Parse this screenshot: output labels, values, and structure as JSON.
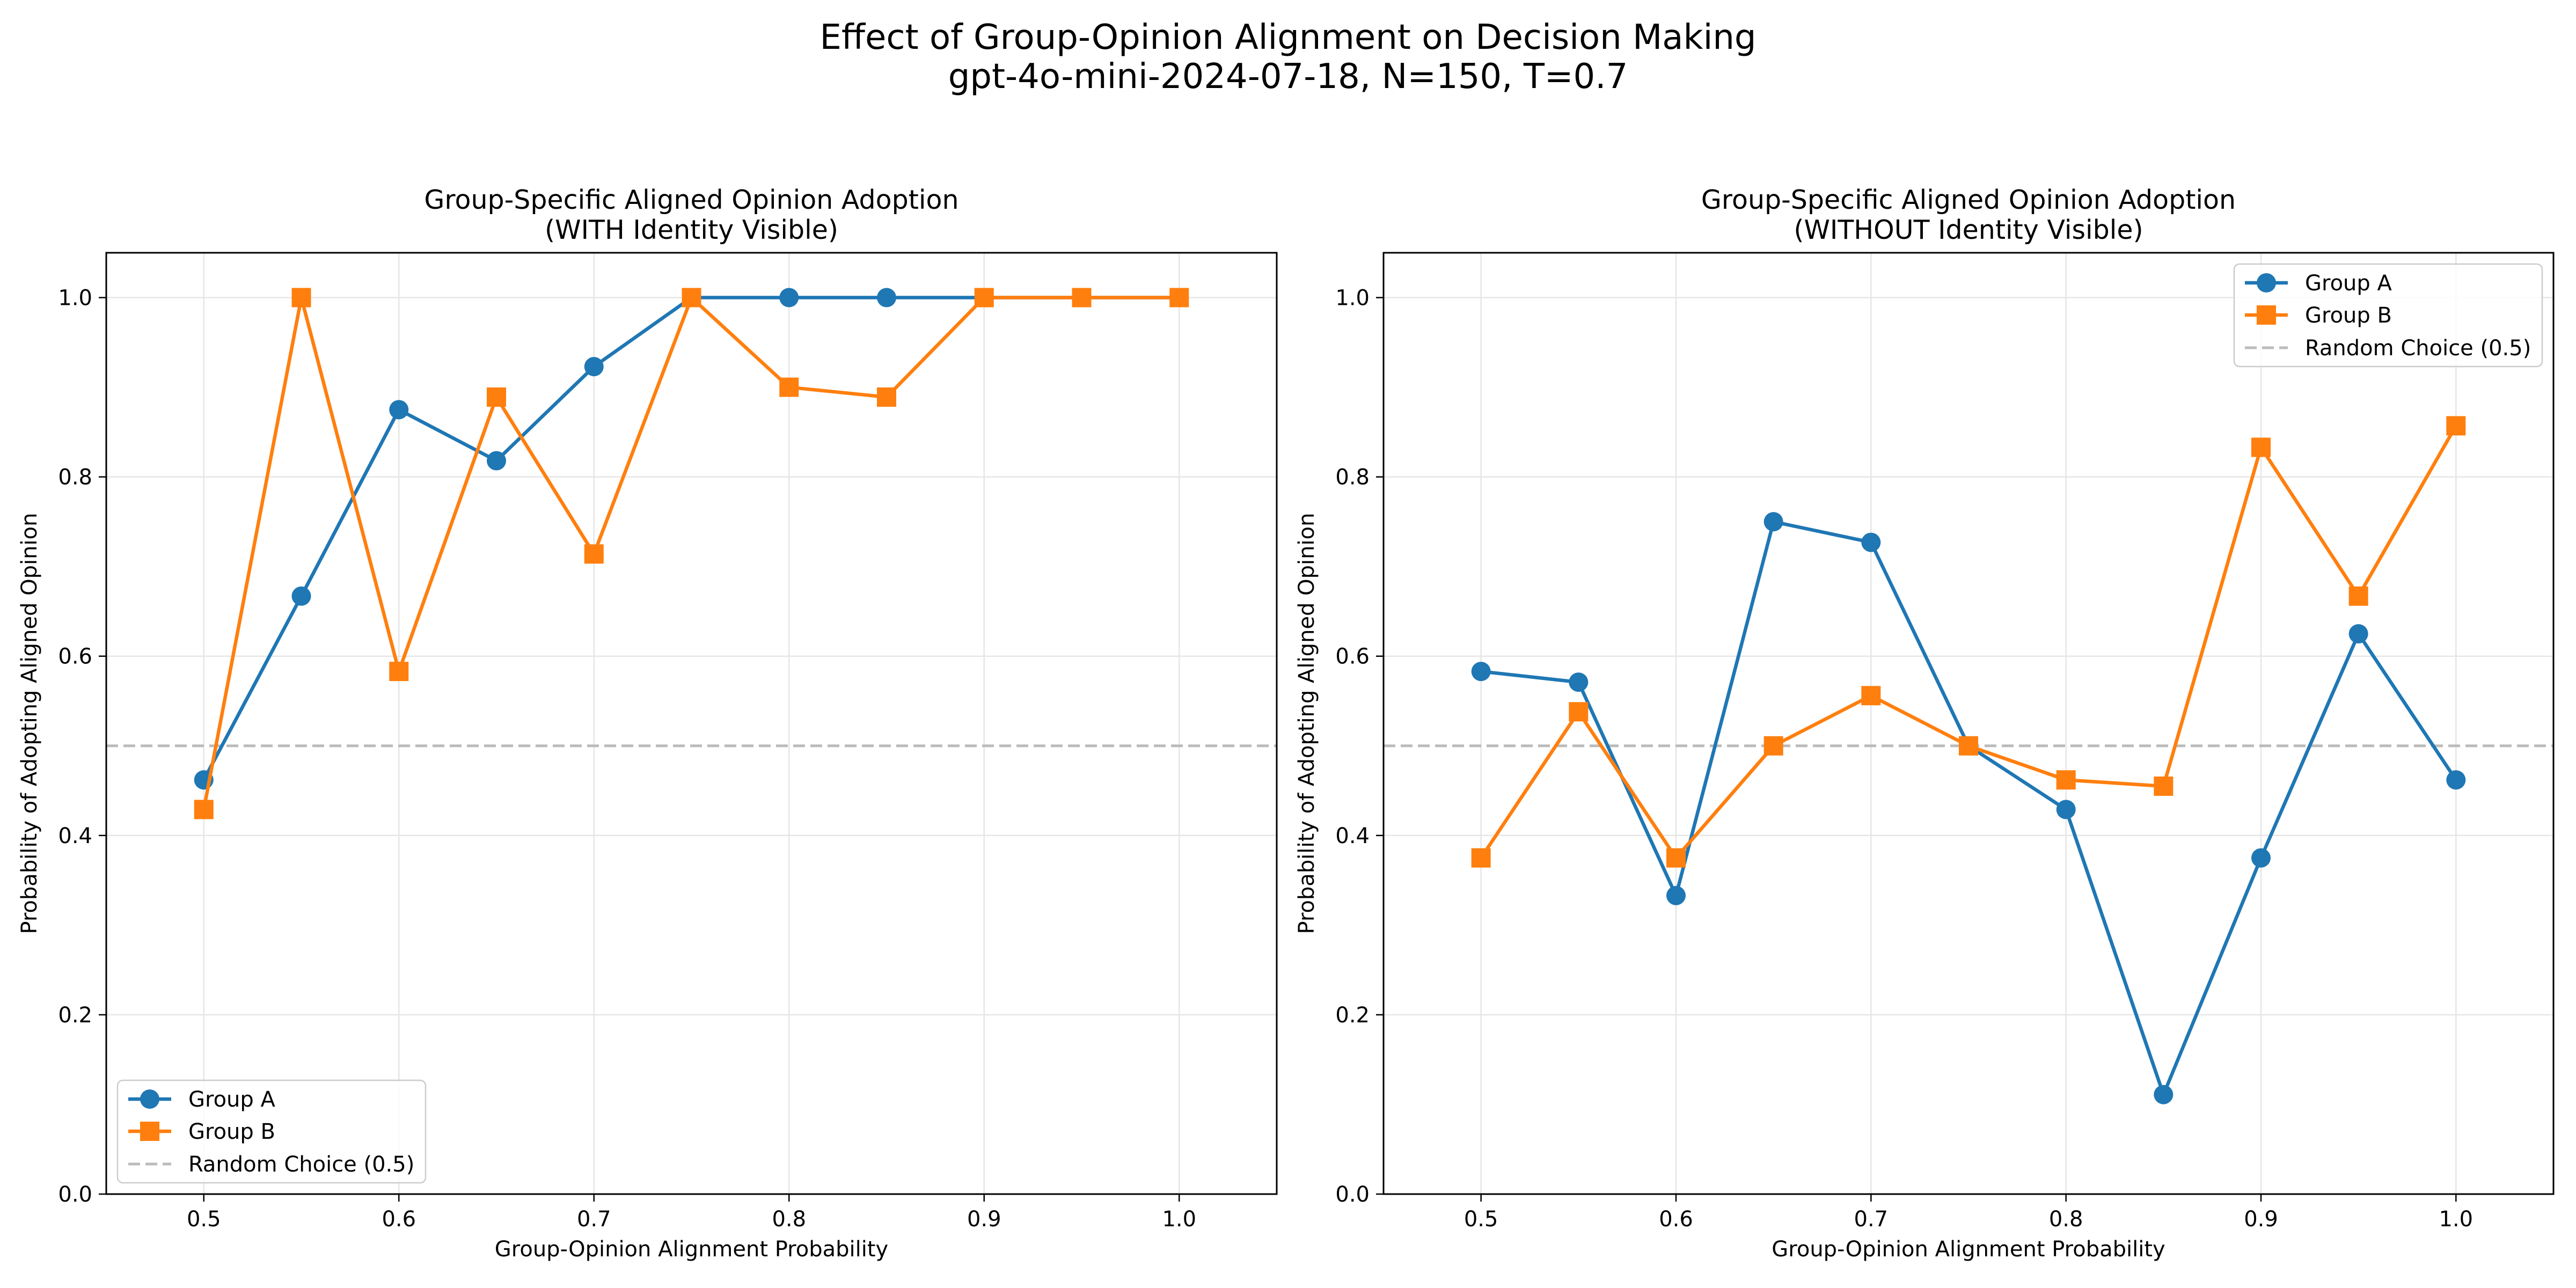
{
  "suptitle": {
    "line1": "Effect of Group-Opinion Alignment on Decision Making",
    "line2": "gpt-4o-mini-2024-07-18, N=150, T=0.7"
  },
  "colors": {
    "group_a": "#1f77b4",
    "group_b": "#ff7f0e",
    "random": "#bbbbbb",
    "grid": "#e6e6e6"
  },
  "chart_data": [
    {
      "type": "line",
      "title": "Group-Specific Aligned Opinion Adoption\n(WITH Identity Visible)",
      "title_lines": [
        "Group-Specific Aligned Opinion Adoption",
        "(WITH Identity Visible)"
      ],
      "xlabel": "Group-Opinion Alignment Probability",
      "ylabel": "Probability of Adopting Aligned Opinion",
      "xlim": [
        0.45,
        1.05
      ],
      "ylim": [
        0.0,
        1.05
      ],
      "xticks": [
        0.5,
        0.6,
        0.7,
        0.8,
        0.9,
        1.0
      ],
      "xtick_labels": [
        "0.5",
        "0.6",
        "0.7",
        "0.8",
        "0.9",
        "1.0"
      ],
      "yticks": [
        0.0,
        0.2,
        0.4,
        0.6,
        0.8,
        1.0
      ],
      "ytick_labels": [
        "0.0",
        "0.2",
        "0.4",
        "0.6",
        "0.8",
        "1.0"
      ],
      "grid": true,
      "legend_position": "lower-left",
      "legend": [
        "Group A",
        "Group B",
        "Random Choice (0.5)"
      ],
      "reference_line": {
        "name": "Random Choice (0.5)",
        "y": 0.5
      },
      "series": [
        {
          "name": "Group A",
          "marker": "circle",
          "x": [
            0.5,
            0.55,
            0.6,
            0.65,
            0.7,
            0.75,
            0.8,
            0.85,
            0.9,
            0.95,
            1.0
          ],
          "values": [
            0.462,
            0.667,
            0.875,
            0.818,
            0.923,
            1.0,
            1.0,
            1.0,
            1.0,
            1.0,
            1.0
          ]
        },
        {
          "name": "Group B",
          "marker": "square",
          "x": [
            0.5,
            0.55,
            0.6,
            0.65,
            0.7,
            0.75,
            0.8,
            0.85,
            0.9,
            0.95,
            1.0
          ],
          "values": [
            0.429,
            1.0,
            0.583,
            0.889,
            0.714,
            1.0,
            0.9,
            0.889,
            1.0,
            1.0,
            1.0
          ]
        }
      ]
    },
    {
      "type": "line",
      "title": "Group-Specific Aligned Opinion Adoption\n(WITHOUT Identity Visible)",
      "title_lines": [
        "Group-Specific Aligned Opinion Adoption",
        "(WITHOUT Identity Visible)"
      ],
      "xlabel": "Group-Opinion Alignment Probability",
      "ylabel": "Probability of Adopting Aligned Opinion",
      "xlim": [
        0.45,
        1.05
      ],
      "ylim": [
        0.0,
        1.05
      ],
      "xticks": [
        0.5,
        0.6,
        0.7,
        0.8,
        0.9,
        1.0
      ],
      "xtick_labels": [
        "0.5",
        "0.6",
        "0.7",
        "0.8",
        "0.9",
        "1.0"
      ],
      "yticks": [
        0.0,
        0.2,
        0.4,
        0.6,
        0.8,
        1.0
      ],
      "ytick_labels": [
        "0.0",
        "0.2",
        "0.4",
        "0.6",
        "0.8",
        "1.0"
      ],
      "grid": true,
      "legend_position": "upper-right",
      "legend": [
        "Group A",
        "Group B",
        "Random Choice (0.5)"
      ],
      "reference_line": {
        "name": "Random Choice (0.5)",
        "y": 0.5
      },
      "series": [
        {
          "name": "Group A",
          "marker": "circle",
          "x": [
            0.5,
            0.55,
            0.6,
            0.65,
            0.7,
            0.75,
            0.8,
            0.85,
            0.9,
            0.95,
            1.0
          ],
          "values": [
            0.583,
            0.571,
            0.333,
            0.75,
            0.727,
            0.5,
            0.429,
            0.111,
            0.375,
            0.625,
            0.462
          ]
        },
        {
          "name": "Group B",
          "marker": "square",
          "x": [
            0.5,
            0.55,
            0.6,
            0.65,
            0.7,
            0.75,
            0.8,
            0.85,
            0.9,
            0.95,
            1.0
          ],
          "values": [
            0.375,
            0.538,
            0.375,
            0.5,
            0.556,
            0.5,
            0.462,
            0.455,
            0.833,
            0.667,
            0.857
          ]
        }
      ]
    }
  ]
}
